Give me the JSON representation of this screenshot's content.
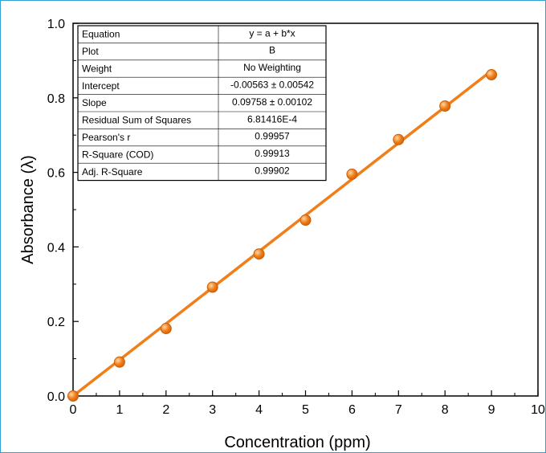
{
  "chart_data": {
    "type": "scatter",
    "xlabel": "Concentration (ppm)",
    "ylabel": "Absorbance (λ)",
    "xlim": [
      0,
      10
    ],
    "ylim": [
      0,
      1.0
    ],
    "x_ticks": [
      "0",
      "1",
      "2",
      "3",
      "4",
      "5",
      "6",
      "7",
      "8",
      "9",
      "10"
    ],
    "y_ticks": [
      "0.0",
      "0.2",
      "0.4",
      "0.6",
      "0.8",
      "1.0"
    ],
    "grid": false,
    "color": "#f07f1a",
    "series": [
      {
        "x": [
          0,
          1,
          2,
          3,
          4,
          5,
          6,
          7,
          8,
          9
        ],
        "y": [
          0.0,
          0.091,
          0.181,
          0.292,
          0.381,
          0.472,
          0.595,
          0.688,
          0.778,
          0.862
        ]
      }
    ],
    "fit_line": {
      "intercept": -0.00563,
      "slope": 0.09758,
      "x_range": [
        0,
        9
      ]
    },
    "fit_table": [
      {
        "label": "Equation",
        "value": "y = a + b*x"
      },
      {
        "label": "Plot",
        "value": "B"
      },
      {
        "label": "Weight",
        "value": "No Weighting"
      },
      {
        "label": "Intercept",
        "value": "-0.00563 ± 0.00542"
      },
      {
        "label": "Slope",
        "value": "0.09758 ± 0.00102"
      },
      {
        "label": "Residual Sum of Squares",
        "value": "6.81416E-4"
      },
      {
        "label": "Pearson's r",
        "value": "0.99957"
      },
      {
        "label": "R-Square (COD)",
        "value": "0.99913"
      },
      {
        "label": "Adj. R-Square",
        "value": "0.99902"
      }
    ]
  }
}
